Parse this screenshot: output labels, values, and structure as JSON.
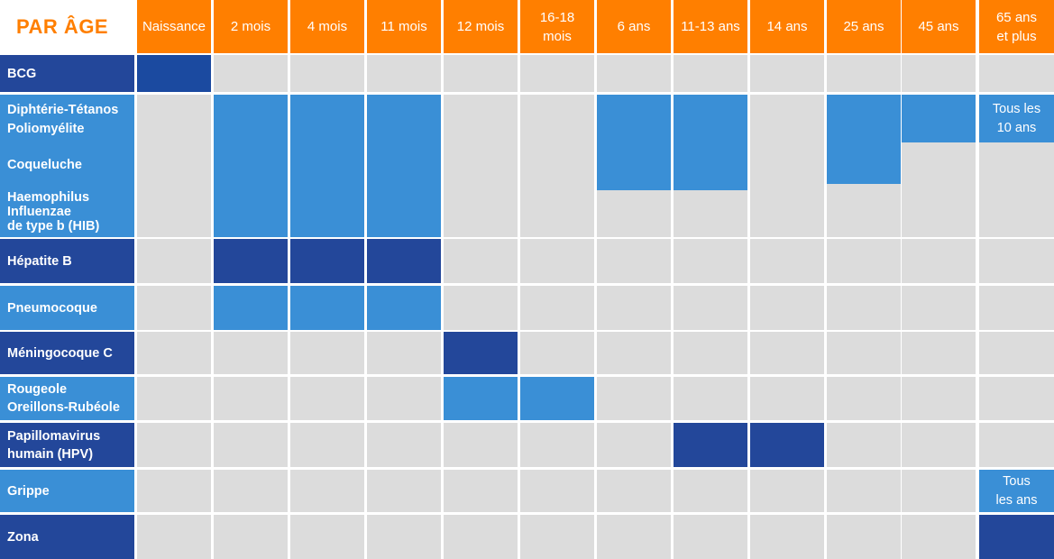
{
  "title": "PAR ÂGE",
  "colors": {
    "header": "#ff7f00",
    "dark": "#23479a",
    "light": "#3a8fd6",
    "empty": "#dcdcdc",
    "bcg": "#1b4aa0"
  },
  "columns": [
    "Naissance",
    "2 mois",
    "4 mois",
    "11 mois",
    "12 mois",
    "16-18\nmois",
    "6 ans",
    "11-13 ans",
    "14 ans",
    "25 ans",
    "45 ans",
    "65 ans\net plus"
  ],
  "rows": [
    {
      "key": "bcg",
      "lines": [
        "BCG"
      ],
      "shade": "dark",
      "doses": [
        0
      ]
    },
    {
      "key": "dtp",
      "lines": [
        "Diphtérie-Tétanos",
        "Poliomyélite",
        "Coqueluche",
        "Haemophilus",
        "Influenzae",
        "de type b (HIB)"
      ],
      "shade": "light",
      "doses": [
        1,
        2,
        3,
        6,
        7,
        9,
        10,
        11
      ]
    },
    {
      "key": "hepb",
      "lines": [
        "Hépatite B"
      ],
      "shade": "dark",
      "doses": [
        1,
        2,
        3
      ]
    },
    {
      "key": "pneumo",
      "lines": [
        "Pneumocoque"
      ],
      "shade": "light",
      "doses": [
        1,
        2,
        3
      ]
    },
    {
      "key": "menc",
      "lines": [
        "Méningocoque C"
      ],
      "shade": "dark",
      "doses": [
        4
      ]
    },
    {
      "key": "ror",
      "lines": [
        "Rougeole",
        "Oreillons-Rubéole"
      ],
      "shade": "light",
      "doses": [
        4,
        5
      ]
    },
    {
      "key": "hpv",
      "lines": [
        "Papillomavirus",
        "humain (HPV)"
      ],
      "shade": "dark",
      "doses": [
        7,
        8
      ]
    },
    {
      "key": "grippe",
      "lines": [
        "Grippe"
      ],
      "shade": "light",
      "doses": [
        11
      ]
    },
    {
      "key": "zona",
      "lines": [
        "Zona"
      ],
      "shade": "dark",
      "doses": [
        11
      ]
    }
  ],
  "notes": {
    "dtp_65": "Tous les\n10 ans",
    "grippe_65": "Tous\nles ans"
  }
}
